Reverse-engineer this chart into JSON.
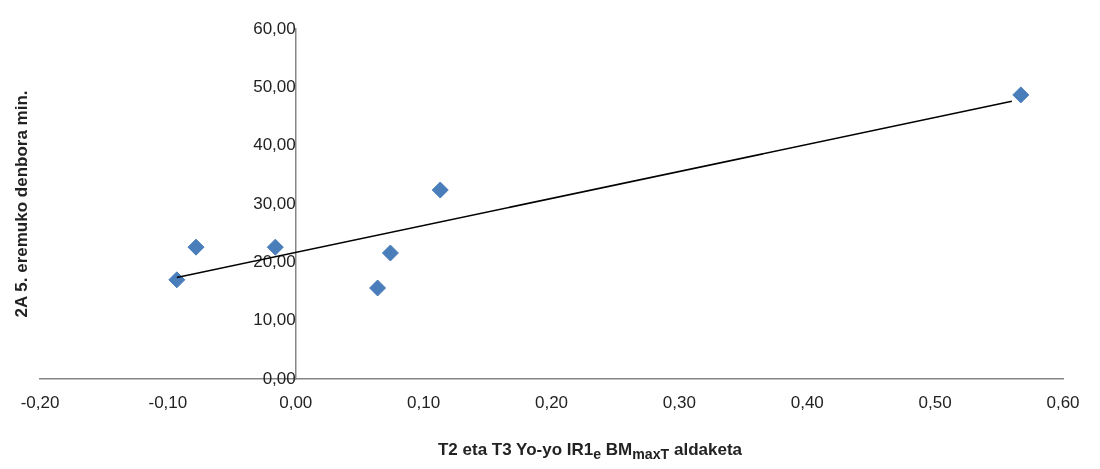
{
  "chart_data": {
    "type": "scatter",
    "xlabel": "T2 eta T3 Yo-yo IR1$_{e}$ BM$_{maxT}$ aldaketa",
    "ylabel": "2A 5. eremuko denbora min.",
    "xlim": [
      -0.2,
      0.6
    ],
    "xticks": [
      {
        "value": -0.2,
        "label": "-0,20"
      },
      {
        "value": -0.1,
        "label": "-0,10"
      },
      {
        "value": 0,
        "label": "0,00"
      },
      {
        "value": 0.1,
        "label": "0,10"
      },
      {
        "value": 0.2,
        "label": "0,20"
      },
      {
        "value": 0.3,
        "label": "0,30"
      },
      {
        "value": 0.4,
        "label": "0,40"
      },
      {
        "value": 0.5,
        "label": "0,50"
      },
      {
        "value": 0.6,
        "label": "0,60"
      }
    ],
    "ylim": [
      0,
      60
    ],
    "yticks": [
      {
        "value": 0,
        "label": "0,00"
      },
      {
        "value": 10,
        "label": "10,00"
      },
      {
        "value": 20,
        "label": "20,00"
      },
      {
        "value": 30,
        "label": "30,00"
      },
      {
        "value": 40,
        "label": "40,00"
      },
      {
        "value": 50,
        "label": "50,00"
      },
      {
        "value": 60,
        "label": "60,00"
      }
    ],
    "grid": false,
    "legend": false,
    "marker": "diamond",
    "series": [
      {
        "type": "scatter",
        "color": "#4a7ebb",
        "x": [
          -0.093,
          -0.078,
          -0.016,
          0.064,
          0.074,
          0.113,
          0.567
        ],
        "values": [
          17.0,
          22.6,
          22.6,
          15.6,
          21.6,
          32.4,
          48.7
        ]
      },
      {
        "type": "line",
        "color": "#000000",
        "marker": "none",
        "x": [
          -0.093,
          0.56
        ],
        "values": [
          17.4,
          47.6
        ]
      }
    ]
  }
}
